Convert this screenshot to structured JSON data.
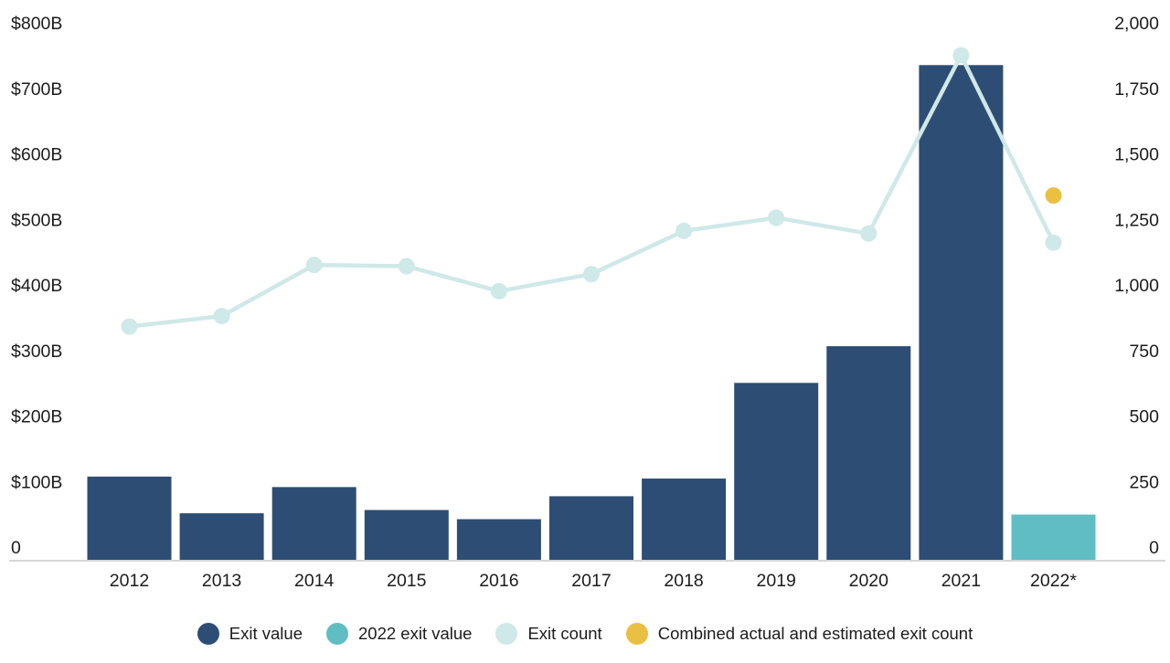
{
  "chart_data": {
    "type": "bar+line",
    "categories": [
      "2012",
      "2013",
      "2014",
      "2015",
      "2016",
      "2017",
      "2018",
      "2019",
      "2020",
      "2021",
      "2022*"
    ],
    "series": [
      {
        "name": "Exit value",
        "type": "bar",
        "axis": "left",
        "values": [
          127,
          71,
          111,
          76,
          62,
          97,
          124,
          270,
          326,
          755,
          null
        ],
        "color": "#2d4d74"
      },
      {
        "name": "2022 exit value",
        "type": "bar",
        "axis": "left",
        "values": [
          null,
          null,
          null,
          null,
          null,
          null,
          null,
          null,
          null,
          null,
          69
        ],
        "color": "#5fbdc3"
      },
      {
        "name": "Exit count",
        "type": "line",
        "axis": "right",
        "values": [
          890,
          930,
          1125,
          1120,
          1025,
          1090,
          1255,
          1305,
          1245,
          1925,
          1210
        ],
        "color": "#cfe8e8"
      },
      {
        "name": "Combined actual and estimated exit count",
        "type": "point",
        "axis": "right",
        "values": [
          null,
          null,
          null,
          null,
          null,
          null,
          null,
          null,
          null,
          null,
          1390
        ],
        "color": "#e9c041"
      }
    ],
    "left_axis": {
      "range": [
        0,
        800
      ],
      "tick_step": 100,
      "tick_labels": [
        "0",
        "$100B",
        "$200B",
        "$300B",
        "$400B",
        "$500B",
        "$600B",
        "$700B",
        "$800B"
      ]
    },
    "right_axis": {
      "range": [
        0,
        2000
      ],
      "tick_step": 250,
      "tick_labels": [
        "0",
        "250",
        "500",
        "750",
        "1,000",
        "1,250",
        "1,500",
        "1,750",
        "2,000"
      ]
    },
    "grid": false,
    "legend_position": "bottom",
    "legend": [
      {
        "label": "Exit value",
        "color": "#2d4d74"
      },
      {
        "label": "2022 exit value",
        "color": "#5fbdc3"
      },
      {
        "label": "Exit count",
        "color": "#cfe8e8"
      },
      {
        "label": "Combined actual and estimated exit count",
        "color": "#e9c041"
      }
    ],
    "colors": {
      "exit_value_bar": "#2d4d74",
      "exit_value_2022_bar": "#5fbdc3",
      "exit_count_line": "#cfe8e8",
      "estimated_count_point": "#e9c041",
      "axis_line": "#d6d6d6",
      "text": "#1c1c1c"
    }
  }
}
